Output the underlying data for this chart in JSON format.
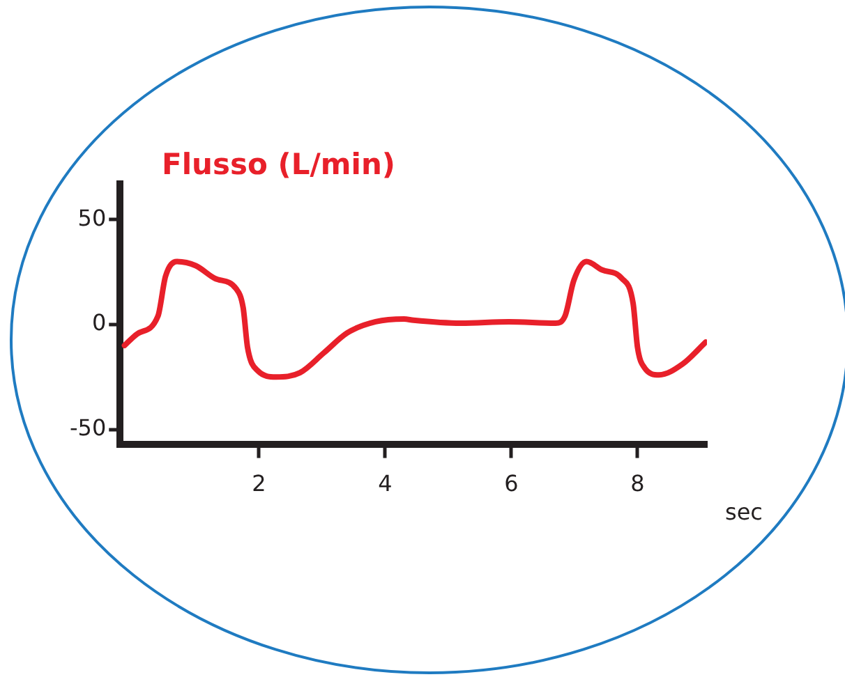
{
  "chart_data": {
    "type": "line",
    "title": "Flusso (L/min)",
    "xlabel": "sec",
    "x": [
      -0.13,
      0.07,
      0.4,
      0.52,
      0.7,
      1.0,
      1.3,
      1.64,
      1.75,
      1.82,
      1.98,
      2.27,
      2.65,
      3.03,
      3.4,
      3.85,
      4.3,
      4.45,
      5.2,
      5.96,
      6.7,
      6.85,
      6.99,
      7.19,
      7.44,
      7.75,
      7.93,
      8.0,
      8.11,
      8.34,
      8.72,
      9.08
    ],
    "series": [
      {
        "color": "#e8202a",
        "values": [
          -10,
          -4.5,
          4,
          23,
          30,
          28,
          22,
          17,
          8,
          -11,
          -22,
          -25,
          -23,
          -13.5,
          -4,
          1.3,
          2.6,
          2,
          0.6,
          1.3,
          0.6,
          4,
          21,
          30,
          26,
          22,
          10,
          -11,
          -20.6,
          -24,
          -18.7,
          -8.4
        ]
      }
    ],
    "xlim": [
      -0.2,
      9.1
    ],
    "ylim": [
      -57,
      67
    ],
    "xticks": [
      2,
      4,
      6,
      8
    ],
    "yticks": [
      -50,
      0,
      50
    ]
  }
}
